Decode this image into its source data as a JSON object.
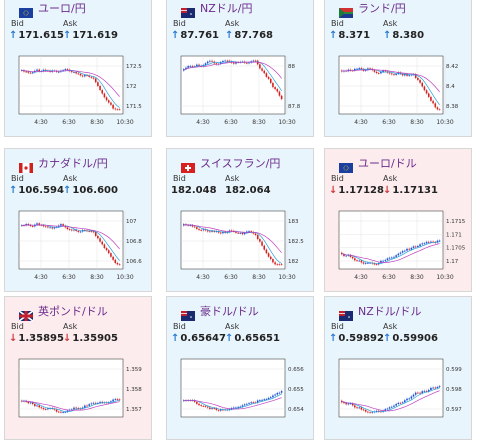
{
  "labels": {
    "bid": "Bid",
    "ask": "Ask"
  },
  "colors": {
    "accent": "#6a2b8b",
    "up": "#2a7ad4",
    "down": "#d23a3a",
    "ma": "#c040c0",
    "ma2": "#2aa0d8"
  },
  "cards": [
    {
      "title": "ユーロ/円",
      "flag": "eu-jp-flag",
      "bid": "171.615",
      "ask": "171.619",
      "dir": "up",
      "bg": "blue",
      "yticks": [
        "172.5",
        "172",
        "171.5"
      ],
      "xticks": [
        "4:30",
        "6:30",
        "8:30",
        "10:30"
      ],
      "trend": "drop"
    },
    {
      "title": "NZドル/円",
      "flag": "nz-jp-flag",
      "bid": "87.761",
      "ask": "87.768",
      "dir": "up",
      "bg": "blue",
      "yticks": [
        "88",
        "87.8"
      ],
      "xticks": [
        "4:30",
        "6:30",
        "8:30",
        "10:30"
      ],
      "trend": "drop"
    },
    {
      "title": "ランド/円",
      "flag": "za-jp-flag",
      "bid": "8.371",
      "ask": "8.380",
      "dir": "up",
      "bg": "blue",
      "yticks": [
        "8.42",
        "8.4",
        "8.38"
      ],
      "xticks": [
        "4:30",
        "6:30",
        "8:30",
        "10:30"
      ],
      "trend": "drop"
    },
    {
      "title": "カナダドル/円",
      "flag": "ca-jp-flag",
      "bid": "106.594",
      "ask": "106.600",
      "dir": "up",
      "bg": "blue",
      "yticks": [
        "107",
        "106.8",
        "106.6"
      ],
      "xticks": [
        "4:30",
        "6:30",
        "8:30",
        "10:30"
      ],
      "trend": "drop"
    },
    {
      "title": "スイスフラン/円",
      "flag": "ch-jp-flag",
      "bid": "182.048",
      "ask": "182.064",
      "dir": "",
      "bg": "blue",
      "yticks": [
        "183",
        "182.5",
        "182"
      ],
      "xticks": [
        "4:30",
        "6:30",
        "8:30",
        "10:30"
      ],
      "trend": "drop"
    },
    {
      "title": "ユーロ/ドル",
      "flag": "eu-us-flag",
      "bid": "1.17128",
      "ask": "1.17131",
      "dir": "down",
      "bg": "pink",
      "yticks": [
        "1.1715",
        "1.171",
        "1.1705",
        "1.17"
      ],
      "xticks": [
        "4:30",
        "6:30",
        "8:30",
        "10:30"
      ],
      "trend": "rise"
    },
    {
      "title": "英ポンド/ドル",
      "flag": "gb-us-flag",
      "bid": "1.35895",
      "ask": "1.35905",
      "dir": "down",
      "bg": "pink",
      "yticks": [
        "1.359",
        "1.358",
        "1.357"
      ],
      "xticks": [],
      "trend": "rise"
    },
    {
      "title": "豪ドル/ドル",
      "flag": "au-us-flag",
      "bid": "0.65647",
      "ask": "0.65651",
      "dir": "up",
      "bg": "blue",
      "yticks": [
        "0.656",
        "0.655",
        "0.654"
      ],
      "xticks": [],
      "trend": "rise"
    },
    {
      "title": "NZドル/ドル",
      "flag": "nz-us-flag",
      "bid": "0.59892",
      "ask": "0.59906",
      "dir": "up",
      "bg": "blue",
      "yticks": [
        "0.599",
        "0.598",
        "0.597"
      ],
      "xticks": [],
      "trend": "rise"
    }
  ]
}
